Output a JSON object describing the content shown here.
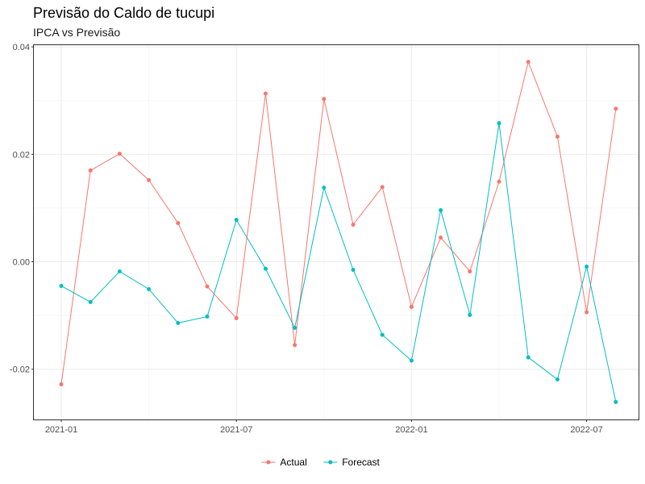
{
  "chart_data": {
    "type": "line",
    "title": "Previsão do Caldo de tucupi",
    "subtitle": "IPCA vs Previsão",
    "xlabel": "",
    "ylabel": "",
    "x": [
      "2021-01",
      "2021-02",
      "2021-03",
      "2021-04",
      "2021-05",
      "2021-06",
      "2021-07",
      "2021-08",
      "2021-09",
      "2021-10",
      "2021-11",
      "2021-12",
      "2022-01",
      "2022-02",
      "2022-03",
      "2022-04",
      "2022-05",
      "2022-06",
      "2022-07",
      "2022-08"
    ],
    "x_ticks": [
      "2021-01",
      "2021-07",
      "2022-01",
      "2022-07"
    ],
    "y_ticks": [
      "-0.02",
      "0.00",
      "0.02",
      "0.04"
    ],
    "ylim": [
      -0.029,
      0.04
    ],
    "grid": true,
    "legend": "bottom",
    "series": [
      {
        "name": "Actual",
        "color": "#F8766D",
        "values": [
          -0.0228,
          0.017,
          0.0201,
          0.0152,
          0.0072,
          -0.0046,
          -0.0105,
          0.0313,
          -0.0155,
          0.0303,
          0.0069,
          0.0139,
          -0.0084,
          0.0045,
          -0.0018,
          0.0149,
          0.0372,
          0.0233,
          -0.0094,
          0.0285
        ]
      },
      {
        "name": "Forecast",
        "color": "#00BFC4",
        "values": [
          -0.0045,
          -0.0075,
          -0.0018,
          -0.0051,
          -0.0114,
          -0.0102,
          0.0078,
          -0.0013,
          -0.0123,
          0.0138,
          -0.0015,
          -0.0136,
          -0.0184,
          0.0096,
          -0.0099,
          0.0258,
          -0.0178,
          -0.0219,
          -0.0009,
          -0.0261
        ]
      }
    ]
  }
}
